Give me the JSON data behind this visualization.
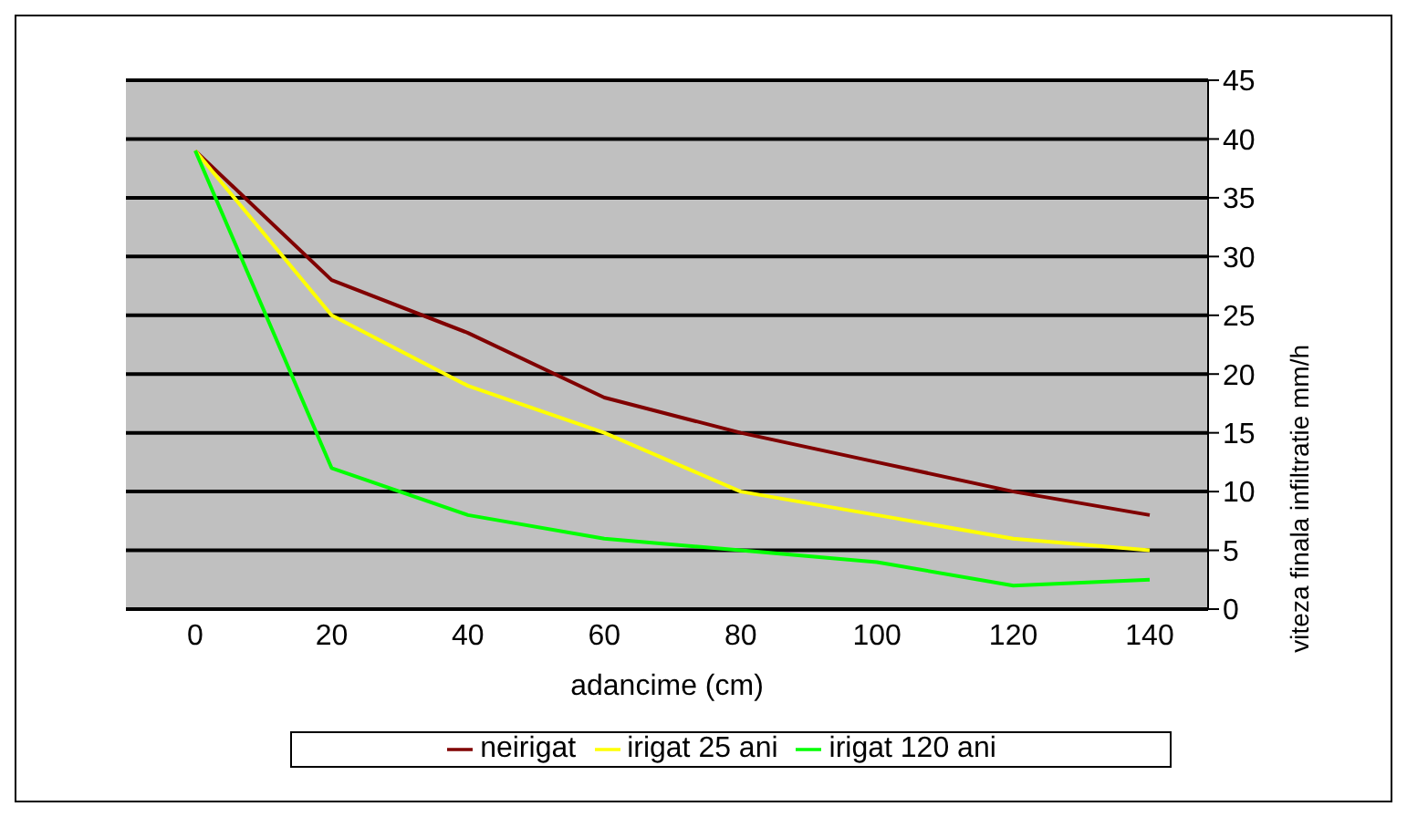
{
  "chart_data": {
    "type": "line",
    "xlabel": "adancime (cm)",
    "ylabel": "viteza finala infiltratie mm/h",
    "categories": [
      "0",
      "20",
      "40",
      "60",
      "80",
      "100",
      "120",
      "140"
    ],
    "series": [
      {
        "name": "neirigat",
        "color": "#800000",
        "values": [
          39,
          28,
          23.5,
          18,
          15,
          12.5,
          10,
          8
        ]
      },
      {
        "name": "irigat 25 ani",
        "color": "#ffff00",
        "values": [
          39,
          25,
          19,
          15,
          10,
          8,
          6,
          5
        ]
      },
      {
        "name": "irigat 120 ani",
        "color": "#00ff00",
        "values": [
          39,
          12,
          8,
          6,
          5,
          4,
          2,
          2.5
        ]
      }
    ],
    "ylim": [
      0,
      45
    ],
    "yticks": [
      0,
      5,
      10,
      15,
      20,
      25,
      30,
      35,
      40,
      45
    ],
    "grid": "y",
    "legend": "bottom",
    "marker": "none",
    "line_style": "solid"
  }
}
